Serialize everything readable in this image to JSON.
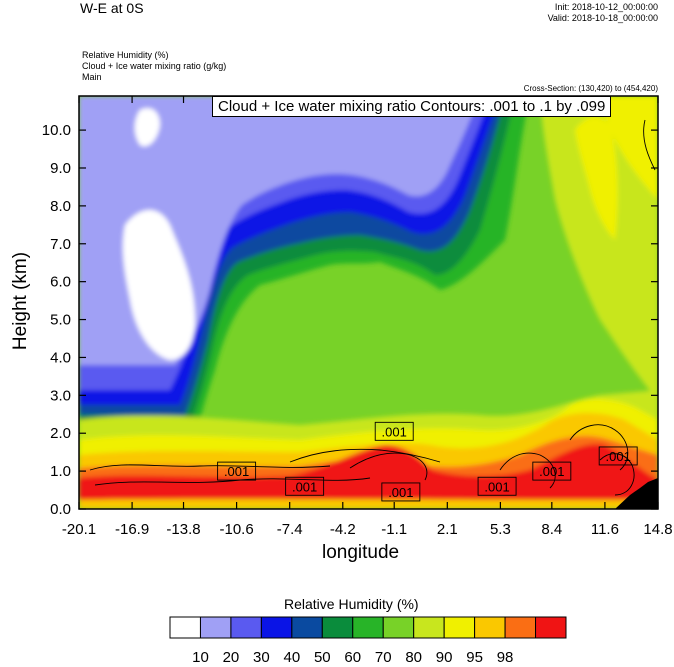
{
  "header": {
    "title": "W-E at 0S",
    "init": "Init: 2018-10-12_00:00:00",
    "valid": "Valid: 2018-10-18_00:00:00",
    "field_lines": [
      "Relative Humidity   (%)",
      "Cloud + Ice water mixing ratio   (g/kg)",
      "Main"
    ],
    "cross_section": "Cross-Section: (130,420) to (454,420)",
    "contour_label": "Cloud + Ice water mixing ratio Contours: .001 to .1 by .099"
  },
  "chart_data": {
    "type": "heatmap",
    "title": "W-E at 0S",
    "xlabel": "longitude",
    "ylabel": "Height (km)",
    "xlim": [
      -20.1,
      14.8
    ],
    "ylim": [
      0.0,
      10.9
    ],
    "x_ticks": [
      "-20.1",
      "-16.9",
      "-13.8",
      "-10.6",
      "-7.4",
      "-4.2",
      "-1.1",
      "2.1",
      "5.3",
      "8.4",
      "11.6",
      "14.8"
    ],
    "y_ticks": [
      "0.0",
      "1.0",
      "2.0",
      "3.0",
      "4.0",
      "5.0",
      "6.0",
      "7.0",
      "8.0",
      "9.0",
      "10.0"
    ],
    "colorbar": {
      "title": "Relative Humidity  (%)",
      "levels": [
        "10",
        "20",
        "30",
        "40",
        "50",
        "60",
        "70",
        "80",
        "90",
        "95",
        "98"
      ],
      "colors": [
        "#ffffff",
        "#a0a0f5",
        "#5a5af0",
        "#0a14e6",
        "#0a4aa0",
        "#0a8c3c",
        "#28b428",
        "#78d228",
        "#c8e61e",
        "#f0f000",
        "#fac800",
        "#fa6e14",
        "#f01414"
      ]
    },
    "contour_labels": [
      {
        "text": ".001",
        "x": -1.1,
        "y": 2.05
      },
      {
        "text": ".001",
        "x": -10.6,
        "y": 1.0
      },
      {
        "text": ".001",
        "x": -6.5,
        "y": 0.6
      },
      {
        "text": ".001",
        "x": -0.7,
        "y": 0.45
      },
      {
        "text": ".001",
        "x": 5.1,
        "y": 0.6
      },
      {
        "text": ".001",
        "x": 8.4,
        "y": 1.0
      },
      {
        "text": ".001",
        "x": 12.4,
        "y": 1.4
      }
    ]
  }
}
